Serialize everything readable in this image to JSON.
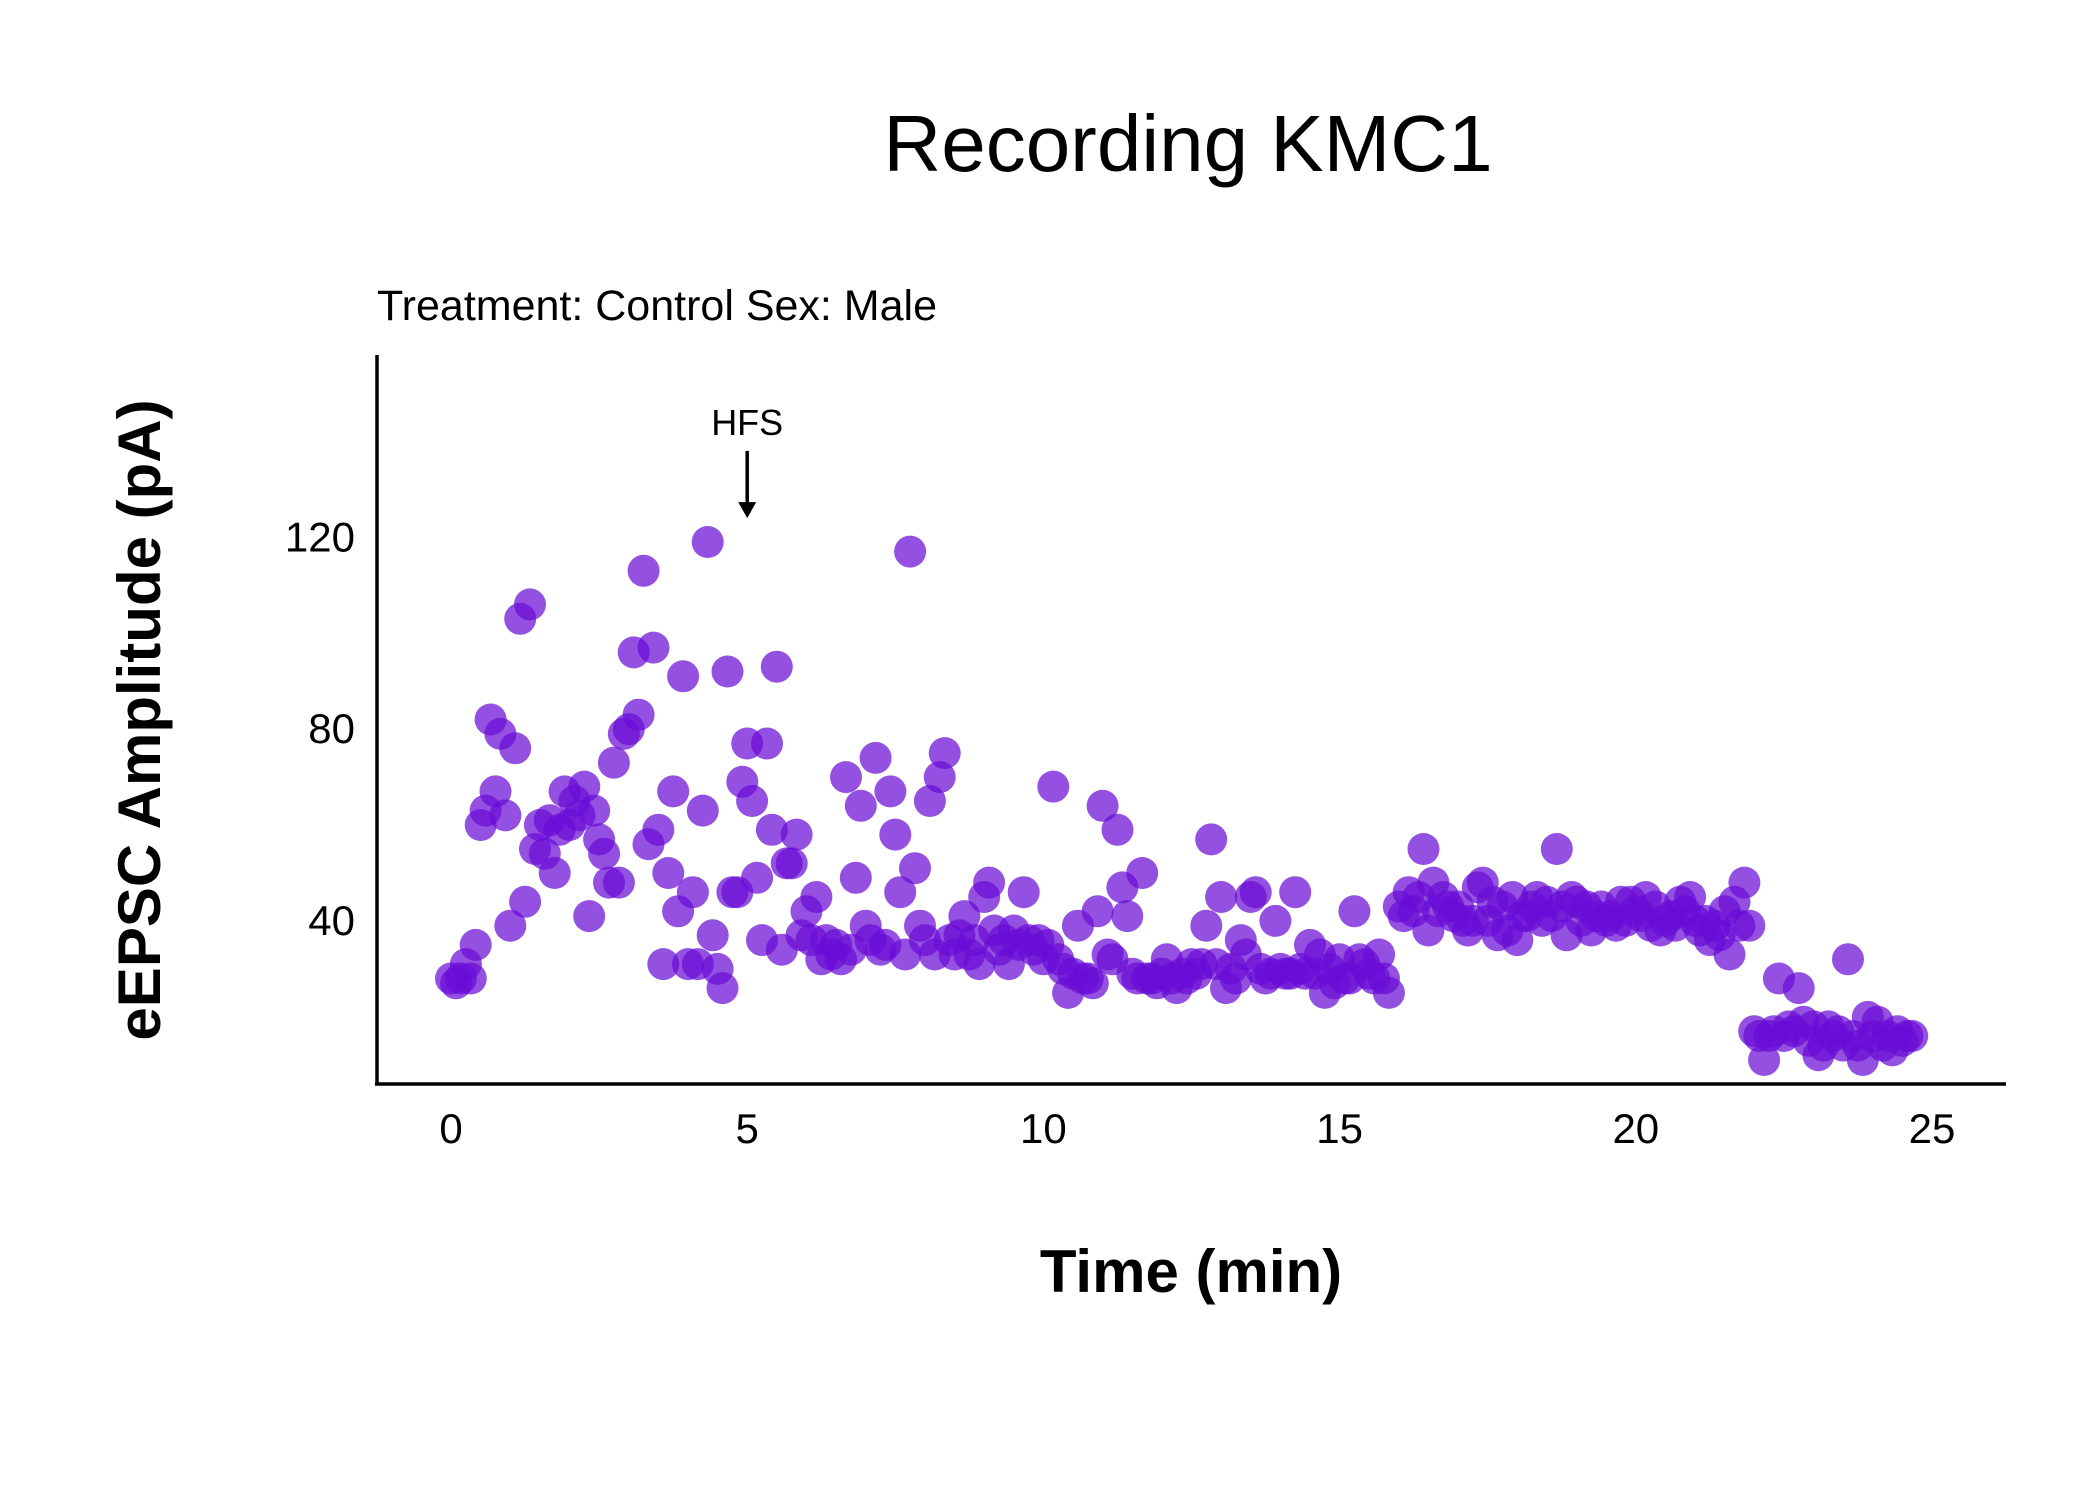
{
  "chart_data": {
    "type": "scatter",
    "title": "Recording KMC1",
    "subtitle": "Treatment: Control  Sex: Male",
    "xlabel": "Time (min)",
    "ylabel": "eEPSC Amplitude (pA)",
    "xlim": [
      -1.25,
      26.25
    ],
    "ylim": [
      6,
      158
    ],
    "xticks": [
      0,
      5,
      10,
      15,
      20,
      25
    ],
    "yticks": [
      40,
      80,
      120
    ],
    "grid": false,
    "legend": "none",
    "point_color": "#6a0dd6",
    "annotation": {
      "text": "HFS",
      "x": 5,
      "arrow_from_y": 138,
      "arrow_to_y": 124
    },
    "points": [
      [
        0.0,
        28
      ],
      [
        0.083,
        27
      ],
      [
        0.167,
        28
      ],
      [
        0.25,
        31
      ],
      [
        0.333,
        28
      ],
      [
        0.417,
        35
      ],
      [
        0.5,
        60
      ],
      [
        0.583,
        63
      ],
      [
        0.667,
        82
      ],
      [
        0.75,
        67
      ],
      [
        0.833,
        79
      ],
      [
        0.917,
        62
      ],
      [
        1.0,
        39
      ],
      [
        1.083,
        76
      ],
      [
        1.167,
        103
      ],
      [
        1.25,
        44
      ],
      [
        1.333,
        106
      ],
      [
        1.417,
        55
      ],
      [
        1.5,
        60
      ],
      [
        1.583,
        54
      ],
      [
        1.667,
        61
      ],
      [
        1.75,
        50
      ],
      [
        1.833,
        59
      ],
      [
        1.917,
        67
      ],
      [
        2.0,
        60
      ],
      [
        2.083,
        65
      ],
      [
        2.167,
        62
      ],
      [
        2.25,
        68
      ],
      [
        2.333,
        41
      ],
      [
        2.417,
        63
      ],
      [
        2.5,
        57
      ],
      [
        2.583,
        54
      ],
      [
        2.667,
        48
      ],
      [
        2.75,
        73
      ],
      [
        2.833,
        48
      ],
      [
        2.917,
        79
      ],
      [
        3.0,
        80
      ],
      [
        3.083,
        96
      ],
      [
        3.167,
        83
      ],
      [
        3.25,
        113
      ],
      [
        3.333,
        56
      ],
      [
        3.417,
        97
      ],
      [
        3.5,
        59
      ],
      [
        3.583,
        31
      ],
      [
        3.667,
        50
      ],
      [
        3.75,
        67
      ],
      [
        3.833,
        42
      ],
      [
        3.917,
        91
      ],
      [
        4.0,
        31
      ],
      [
        4.083,
        46
      ],
      [
        4.167,
        31
      ],
      [
        4.25,
        63
      ],
      [
        4.333,
        119
      ],
      [
        4.417,
        37
      ],
      [
        4.5,
        30
      ],
      [
        4.583,
        26
      ],
      [
        4.667,
        92
      ],
      [
        4.75,
        46
      ],
      [
        4.833,
        46
      ],
      [
        4.917,
        69
      ],
      [
        5.0,
        77
      ],
      [
        5.083,
        65
      ],
      [
        5.167,
        49
      ],
      [
        5.25,
        36
      ],
      [
        5.333,
        77
      ],
      [
        5.417,
        59
      ],
      [
        5.5,
        93
      ],
      [
        5.583,
        34
      ],
      [
        5.667,
        52
      ],
      [
        5.75,
        52
      ],
      [
        5.833,
        58
      ],
      [
        5.917,
        37
      ],
      [
        6.0,
        42
      ],
      [
        6.083,
        36
      ],
      [
        6.167,
        45
      ],
      [
        6.25,
        32
      ],
      [
        6.333,
        36
      ],
      [
        6.417,
        33
      ],
      [
        6.5,
        35
      ],
      [
        6.583,
        32
      ],
      [
        6.667,
        70
      ],
      [
        6.75,
        34
      ],
      [
        6.833,
        49
      ],
      [
        6.917,
        64
      ],
      [
        7.0,
        39
      ],
      [
        7.083,
        36
      ],
      [
        7.167,
        74
      ],
      [
        7.25,
        34
      ],
      [
        7.333,
        35
      ],
      [
        7.417,
        67
      ],
      [
        7.5,
        58
      ],
      [
        7.583,
        46
      ],
      [
        7.667,
        33
      ],
      [
        7.75,
        117
      ],
      [
        7.833,
        51
      ],
      [
        7.917,
        39
      ],
      [
        8.0,
        36
      ],
      [
        8.083,
        65
      ],
      [
        8.167,
        33
      ],
      [
        8.25,
        70
      ],
      [
        8.333,
        75
      ],
      [
        8.417,
        36
      ],
      [
        8.5,
        33
      ],
      [
        8.583,
        37
      ],
      [
        8.667,
        41
      ],
      [
        8.75,
        33
      ],
      [
        8.833,
        36
      ],
      [
        8.917,
        31
      ],
      [
        9.0,
        45
      ],
      [
        9.083,
        48
      ],
      [
        9.167,
        38
      ],
      [
        9.25,
        34
      ],
      [
        9.333,
        36
      ],
      [
        9.417,
        31
      ],
      [
        9.5,
        38
      ],
      [
        9.583,
        35
      ],
      [
        9.667,
        46
      ],
      [
        9.75,
        36
      ],
      [
        9.833,
        34
      ],
      [
        9.917,
        36
      ],
      [
        10.0,
        32
      ],
      [
        10.083,
        35
      ],
      [
        10.167,
        68
      ],
      [
        10.25,
        32
      ],
      [
        10.333,
        30
      ],
      [
        10.417,
        25
      ],
      [
        10.5,
        29
      ],
      [
        10.583,
        39
      ],
      [
        10.667,
        28
      ],
      [
        10.75,
        28
      ],
      [
        10.833,
        27
      ],
      [
        10.917,
        42
      ],
      [
        11.0,
        64
      ],
      [
        11.083,
        33
      ],
      [
        11.167,
        32
      ],
      [
        11.25,
        59
      ],
      [
        11.333,
        47
      ],
      [
        11.417,
        41
      ],
      [
        11.5,
        29
      ],
      [
        11.583,
        28
      ],
      [
        11.667,
        50
      ],
      [
        11.75,
        28
      ],
      [
        11.833,
        28
      ],
      [
        11.917,
        27
      ],
      [
        12.0,
        29
      ],
      [
        12.083,
        32
      ],
      [
        12.167,
        28
      ],
      [
        12.25,
        26
      ],
      [
        12.333,
        29
      ],
      [
        12.417,
        28
      ],
      [
        12.5,
        31
      ],
      [
        12.583,
        29
      ],
      [
        12.667,
        31
      ],
      [
        12.75,
        39
      ],
      [
        12.833,
        57
      ],
      [
        12.917,
        31
      ],
      [
        13.0,
        45
      ],
      [
        13.083,
        26
      ],
      [
        13.167,
        30
      ],
      [
        13.25,
        28
      ],
      [
        13.333,
        36
      ],
      [
        13.417,
        33
      ],
      [
        13.5,
        45
      ],
      [
        13.583,
        46
      ],
      [
        13.667,
        30
      ],
      [
        13.75,
        28
      ],
      [
        13.833,
        29
      ],
      [
        13.917,
        40
      ],
      [
        14.0,
        30
      ],
      [
        14.083,
        29
      ],
      [
        14.167,
        29
      ],
      [
        14.25,
        46
      ],
      [
        14.333,
        30
      ],
      [
        14.417,
        29
      ],
      [
        14.5,
        35
      ],
      [
        14.583,
        29
      ],
      [
        14.667,
        33
      ],
      [
        14.75,
        25
      ],
      [
        14.833,
        30
      ],
      [
        14.917,
        27
      ],
      [
        15.0,
        32
      ],
      [
        15.083,
        28
      ],
      [
        15.167,
        28
      ],
      [
        15.25,
        42
      ],
      [
        15.333,
        32
      ],
      [
        15.417,
        31
      ],
      [
        15.5,
        29
      ],
      [
        15.583,
        28
      ],
      [
        15.667,
        33
      ],
      [
        15.75,
        28
      ],
      [
        15.833,
        25
      ],
      [
        16.0,
        43
      ],
      [
        16.083,
        41
      ],
      [
        16.167,
        46
      ],
      [
        16.25,
        42
      ],
      [
        16.333,
        45
      ],
      [
        16.417,
        55
      ],
      [
        16.5,
        38
      ],
      [
        16.583,
        48
      ],
      [
        16.667,
        42
      ],
      [
        16.75,
        45
      ],
      [
        16.833,
        43
      ],
      [
        16.917,
        41
      ],
      [
        17.0,
        43
      ],
      [
        17.083,
        40
      ],
      [
        17.167,
        38
      ],
      [
        17.25,
        40
      ],
      [
        17.333,
        47
      ],
      [
        17.417,
        48
      ],
      [
        17.5,
        40
      ],
      [
        17.583,
        44
      ],
      [
        17.667,
        37
      ],
      [
        17.75,
        43
      ],
      [
        17.833,
        38
      ],
      [
        17.917,
        45
      ],
      [
        18.0,
        36
      ],
      [
        18.083,
        41
      ],
      [
        18.167,
        41
      ],
      [
        18.25,
        43
      ],
      [
        18.333,
        45
      ],
      [
        18.417,
        40
      ],
      [
        18.5,
        44
      ],
      [
        18.583,
        41
      ],
      [
        18.667,
        55
      ],
      [
        18.75,
        43
      ],
      [
        18.833,
        37
      ],
      [
        18.917,
        45
      ],
      [
        19.0,
        44
      ],
      [
        19.083,
        40
      ],
      [
        19.167,
        43
      ],
      [
        19.25,
        38
      ],
      [
        19.333,
        41
      ],
      [
        19.417,
        43
      ],
      [
        19.5,
        40
      ],
      [
        19.583,
        41
      ],
      [
        19.667,
        39
      ],
      [
        19.75,
        44
      ],
      [
        19.833,
        40
      ],
      [
        19.917,
        44
      ],
      [
        20.0,
        42
      ],
      [
        20.083,
        41
      ],
      [
        20.167,
        45
      ],
      [
        20.25,
        39
      ],
      [
        20.333,
        43
      ],
      [
        20.417,
        38
      ],
      [
        20.5,
        40
      ],
      [
        20.583,
        41
      ],
      [
        20.667,
        39
      ],
      [
        20.75,
        44
      ],
      [
        20.833,
        42
      ],
      [
        20.917,
        45
      ],
      [
        21.0,
        40
      ],
      [
        21.083,
        38
      ],
      [
        21.167,
        40
      ],
      [
        21.25,
        36
      ],
      [
        21.333,
        39
      ],
      [
        21.417,
        37
      ],
      [
        21.5,
        42
      ],
      [
        21.583,
        33
      ],
      [
        21.667,
        44
      ],
      [
        21.75,
        39
      ],
      [
        21.833,
        48
      ],
      [
        21.917,
        39
      ],
      [
        22.0,
        17
      ],
      [
        22.083,
        16
      ],
      [
        22.167,
        11
      ],
      [
        22.25,
        16
      ],
      [
        22.333,
        17
      ],
      [
        22.417,
        28
      ],
      [
        22.5,
        16
      ],
      [
        22.583,
        18
      ],
      [
        22.667,
        17
      ],
      [
        22.75,
        26
      ],
      [
        22.833,
        19
      ],
      [
        22.917,
        15
      ],
      [
        23.0,
        18
      ],
      [
        23.083,
        12
      ],
      [
        23.167,
        14
      ],
      [
        23.25,
        18
      ],
      [
        23.333,
        16
      ],
      [
        23.417,
        17
      ],
      [
        23.5,
        14
      ],
      [
        23.583,
        32
      ],
      [
        23.667,
        16
      ],
      [
        23.75,
        14
      ],
      [
        23.833,
        11
      ],
      [
        23.917,
        20
      ],
      [
        24.0,
        16
      ],
      [
        24.083,
        19
      ],
      [
        24.167,
        14
      ],
      [
        24.25,
        16
      ],
      [
        24.333,
        13
      ],
      [
        24.417,
        17
      ],
      [
        24.5,
        15
      ],
      [
        24.583,
        16
      ],
      [
        24.667,
        16
      ]
    ]
  }
}
